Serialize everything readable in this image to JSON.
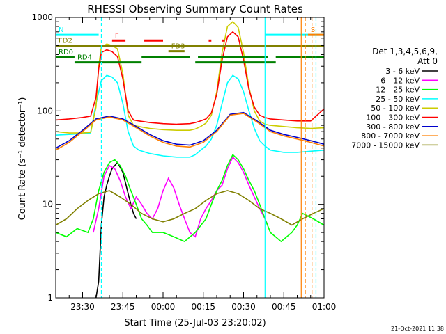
{
  "chart_data": {
    "type": "line",
    "title": "RHESSI Observing Summary Count Rates",
    "ylabel": "Count Rate (s⁻¹ detector⁻¹)",
    "xlabel": "Start Time (25-Jul-03 23:20:02)",
    "yscale": "log",
    "ylim": [
      1,
      1000
    ],
    "xlim_minutes": [
      0,
      100
    ],
    "y_ticks": [
      1,
      10,
      100,
      1000
    ],
    "y_tick_labels": [
      "1",
      "10",
      "100",
      "1000"
    ],
    "x_ticks": [
      10,
      25,
      40,
      55,
      70,
      85,
      100
    ],
    "x_tick_labels": [
      "23:30",
      "23:45",
      "00:00",
      "00:15",
      "00:30",
      "00:45",
      "01:00"
    ],
    "legend_header": [
      "Det 1,3,4,5,6,9,",
      "Att 0"
    ],
    "footer_date": "21-Oct-2021 11:38",
    "series": [
      {
        "name": "3 - 6 keV",
        "color": "#000000",
        "points": [
          [
            15,
            1.0
          ],
          [
            16,
            1.5
          ],
          [
            17,
            6
          ],
          [
            18,
            12
          ],
          [
            19,
            16
          ],
          [
            20,
            20
          ],
          [
            21,
            24
          ],
          [
            22,
            26
          ],
          [
            23,
            28
          ],
          [
            24,
            25
          ],
          [
            25,
            22
          ],
          [
            26,
            17
          ],
          [
            27,
            13
          ],
          [
            28,
            10
          ],
          [
            29,
            8
          ],
          [
            30,
            7
          ]
        ]
      },
      {
        "name": "6 - 12 keV",
        "color": "#ff00ff",
        "points": [
          [
            14,
            5
          ],
          [
            16,
            9
          ],
          [
            18,
            20
          ],
          [
            20,
            26
          ],
          [
            22,
            24
          ],
          [
            24,
            18
          ],
          [
            26,
            12
          ],
          [
            28,
            9
          ],
          [
            30,
            12
          ],
          [
            32,
            10
          ],
          [
            34,
            8
          ],
          [
            36,
            7
          ],
          [
            38,
            9
          ],
          [
            40,
            14
          ],
          [
            42,
            19
          ],
          [
            44,
            15
          ],
          [
            46,
            10
          ],
          [
            48,
            7
          ],
          [
            50,
            5
          ],
          [
            52,
            4.5
          ],
          [
            54,
            7
          ],
          [
            56,
            9
          ],
          [
            58,
            11
          ],
          [
            60,
            14
          ],
          [
            62,
            16
          ],
          [
            64,
            24
          ],
          [
            66,
            32
          ],
          [
            68,
            28
          ],
          [
            70,
            22
          ],
          [
            72,
            16
          ],
          [
            74,
            12
          ],
          [
            76,
            9
          ],
          [
            78,
            7
          ],
          [
            79,
            6
          ]
        ]
      },
      {
        "name": "12 - 25 keV",
        "color": "#00ff00",
        "points": [
          [
            0,
            5
          ],
          [
            4,
            4.5
          ],
          [
            8,
            5.5
          ],
          [
            12,
            5
          ],
          [
            14,
            7
          ],
          [
            16,
            14
          ],
          [
            18,
            22
          ],
          [
            20,
            28
          ],
          [
            22,
            30
          ],
          [
            24,
            26
          ],
          [
            26,
            20
          ],
          [
            28,
            14
          ],
          [
            30,
            10
          ],
          [
            32,
            7
          ],
          [
            34,
            6
          ],
          [
            36,
            5
          ],
          [
            40,
            5
          ],
          [
            44,
            4.5
          ],
          [
            48,
            4
          ],
          [
            52,
            5
          ],
          [
            56,
            7
          ],
          [
            58,
            10
          ],
          [
            60,
            14
          ],
          [
            62,
            18
          ],
          [
            64,
            26
          ],
          [
            66,
            34
          ],
          [
            68,
            30
          ],
          [
            70,
            24
          ],
          [
            72,
            18
          ],
          [
            74,
            14
          ],
          [
            76,
            10
          ],
          [
            78,
            7
          ],
          [
            80,
            5
          ],
          [
            84,
            4
          ],
          [
            88,
            5
          ],
          [
            90,
            6
          ],
          [
            92,
            8
          ],
          [
            96,
            7
          ],
          [
            100,
            6
          ]
        ]
      },
      {
        "name": "25 - 50 keV",
        "color": "#00ffff",
        "points": [
          [
            0,
            55
          ],
          [
            5,
            56
          ],
          [
            10,
            57
          ],
          [
            13,
            58
          ],
          [
            15,
            120
          ],
          [
            17,
            210
          ],
          [
            19,
            240
          ],
          [
            21,
            230
          ],
          [
            23,
            200
          ],
          [
            25,
            120
          ],
          [
            27,
            60
          ],
          [
            29,
            42
          ],
          [
            31,
            38
          ],
          [
            35,
            35
          ],
          [
            40,
            33
          ],
          [
            45,
            32
          ],
          [
            50,
            32
          ],
          [
            52,
            34
          ],
          [
            54,
            38
          ],
          [
            56,
            42
          ],
          [
            58,
            50
          ],
          [
            60,
            70
          ],
          [
            62,
            120
          ],
          [
            64,
            200
          ],
          [
            66,
            240
          ],
          [
            68,
            220
          ],
          [
            70,
            160
          ],
          [
            72,
            100
          ],
          [
            74,
            65
          ],
          [
            76,
            48
          ],
          [
            78,
            42
          ],
          [
            80,
            38
          ],
          [
            85,
            36
          ],
          [
            90,
            36
          ],
          [
            95,
            37
          ],
          [
            100,
            38
          ]
        ]
      },
      {
        "name": "50 - 100 keV",
        "color": "#cccc00",
        "points": [
          [
            0,
            60
          ],
          [
            5,
            58
          ],
          [
            10,
            58
          ],
          [
            13,
            59
          ],
          [
            15,
            110
          ],
          [
            16,
            300
          ],
          [
            17,
            480
          ],
          [
            19,
            520
          ],
          [
            21,
            500
          ],
          [
            23,
            460
          ],
          [
            25,
            250
          ],
          [
            27,
            90
          ],
          [
            29,
            70
          ],
          [
            31,
            68
          ],
          [
            35,
            65
          ],
          [
            40,
            63
          ],
          [
            45,
            62
          ],
          [
            50,
            62
          ],
          [
            52,
            64
          ],
          [
            54,
            68
          ],
          [
            56,
            74
          ],
          [
            58,
            90
          ],
          [
            60,
            160
          ],
          [
            62,
            420
          ],
          [
            64,
            800
          ],
          [
            66,
            900
          ],
          [
            68,
            780
          ],
          [
            70,
            420
          ],
          [
            72,
            180
          ],
          [
            74,
            100
          ],
          [
            76,
            78
          ],
          [
            78,
            72
          ],
          [
            80,
            70
          ],
          [
            85,
            68
          ],
          [
            90,
            66
          ],
          [
            95,
            65
          ],
          [
            100,
            66
          ]
        ]
      },
      {
        "name": "100 - 300 keV",
        "color": "#ff0000",
        "points": [
          [
            0,
            80
          ],
          [
            5,
            82
          ],
          [
            10,
            85
          ],
          [
            13,
            88
          ],
          [
            15,
            140
          ],
          [
            16,
            280
          ],
          [
            17,
            420
          ],
          [
            19,
            450
          ],
          [
            21,
            430
          ],
          [
            23,
            380
          ],
          [
            25,
            220
          ],
          [
            27,
            100
          ],
          [
            29,
            80
          ],
          [
            31,
            78
          ],
          [
            35,
            75
          ],
          [
            40,
            73
          ],
          [
            45,
            72
          ],
          [
            50,
            73
          ],
          [
            52,
            75
          ],
          [
            54,
            78
          ],
          [
            56,
            82
          ],
          [
            58,
            95
          ],
          [
            60,
            150
          ],
          [
            62,
            350
          ],
          [
            64,
            620
          ],
          [
            66,
            700
          ],
          [
            68,
            620
          ],
          [
            70,
            350
          ],
          [
            72,
            170
          ],
          [
            74,
            110
          ],
          [
            76,
            90
          ],
          [
            78,
            85
          ],
          [
            80,
            82
          ],
          [
            85,
            80
          ],
          [
            90,
            78
          ],
          [
            95,
            78
          ],
          [
            100,
            105
          ]
        ]
      },
      {
        "name": "300 - 800 keV",
        "color": "#0000cc",
        "points": [
          [
            0,
            40
          ],
          [
            5,
            48
          ],
          [
            10,
            62
          ],
          [
            15,
            82
          ],
          [
            20,
            88
          ],
          [
            25,
            82
          ],
          [
            30,
            68
          ],
          [
            35,
            56
          ],
          [
            40,
            48
          ],
          [
            45,
            44
          ],
          [
            50,
            43
          ],
          [
            55,
            48
          ],
          [
            60,
            62
          ],
          [
            65,
            92
          ],
          [
            70,
            96
          ],
          [
            75,
            78
          ],
          [
            80,
            62
          ],
          [
            85,
            56
          ],
          [
            90,
            52
          ],
          [
            95,
            48
          ],
          [
            100,
            44
          ]
        ]
      },
      {
        "name": "800 - 7000 keV",
        "color": "#ff7f00",
        "points": [
          [
            0,
            38
          ],
          [
            5,
            46
          ],
          [
            10,
            60
          ],
          [
            15,
            80
          ],
          [
            20,
            86
          ],
          [
            25,
            80
          ],
          [
            30,
            66
          ],
          [
            35,
            54
          ],
          [
            40,
            46
          ],
          [
            45,
            42
          ],
          [
            50,
            41
          ],
          [
            55,
            46
          ],
          [
            60,
            60
          ],
          [
            65,
            90
          ],
          [
            70,
            94
          ],
          [
            75,
            76
          ],
          [
            80,
            60
          ],
          [
            85,
            54
          ],
          [
            90,
            50
          ],
          [
            95,
            46
          ],
          [
            100,
            42
          ]
        ]
      },
      {
        "name": "7000 - 15000 keV",
        "color": "#808000",
        "points": [
          [
            0,
            6
          ],
          [
            4,
            7
          ],
          [
            8,
            9
          ],
          [
            12,
            11
          ],
          [
            16,
            13
          ],
          [
            20,
            14
          ],
          [
            24,
            12
          ],
          [
            28,
            10
          ],
          [
            32,
            8
          ],
          [
            36,
            7
          ],
          [
            40,
            6.5
          ],
          [
            44,
            7
          ],
          [
            48,
            8
          ],
          [
            52,
            9
          ],
          [
            56,
            11
          ],
          [
            60,
            13
          ],
          [
            64,
            14
          ],
          [
            68,
            13
          ],
          [
            72,
            11
          ],
          [
            76,
            9
          ],
          [
            80,
            8
          ],
          [
            84,
            7
          ],
          [
            88,
            6
          ],
          [
            92,
            7
          ],
          [
            96,
            8
          ],
          [
            100,
            9
          ]
        ]
      }
    ],
    "annotations": [
      {
        "label": "N",
        "color": "#00ffff",
        "y": 650,
        "segments": [
          [
            0,
            16
          ],
          [
            78,
            100
          ]
        ]
      },
      {
        "label": "S",
        "color": "#ff7f00",
        "y": 650,
        "segments": [
          [
            94,
            100
          ]
        ]
      },
      {
        "label": "F",
        "color": "#ff0000",
        "y": 565,
        "segments": [
          [
            21,
            26
          ],
          [
            33,
            40
          ],
          [
            57,
            58
          ],
          [
            62,
            63
          ]
        ]
      },
      {
        "label": "FD2",
        "color": "#808000",
        "y": 500,
        "segments": [
          [
            0,
            100
          ]
        ]
      },
      {
        "label": "FD3",
        "color": "#808000",
        "y": 435,
        "segments": [
          [
            42,
            48
          ]
        ]
      },
      {
        "label": "RD0",
        "color": "#008000",
        "y": 375,
        "segments": [
          [
            0,
            7
          ],
          [
            32,
            50
          ],
          [
            53,
            79
          ],
          [
            82,
            100
          ]
        ]
      },
      {
        "label": "RD4",
        "color": "#008000",
        "y": 330,
        "segments": [
          [
            7,
            32
          ],
          [
            52,
            82
          ]
        ]
      }
    ],
    "vertical_markers": [
      {
        "x": 17,
        "color": "#00ffff",
        "style": "dashed"
      },
      {
        "x": 78,
        "color": "#00ffff",
        "style": "solid"
      },
      {
        "x": 91.5,
        "color": "#ff7f00",
        "style": "solid"
      },
      {
        "x": 93,
        "color": "#ff7f00",
        "style": "dashed"
      },
      {
        "x": 95.5,
        "color": "#ff7f00",
        "style": "dashed"
      },
      {
        "x": 97,
        "color": "#00ffff",
        "style": "dashed"
      }
    ]
  }
}
